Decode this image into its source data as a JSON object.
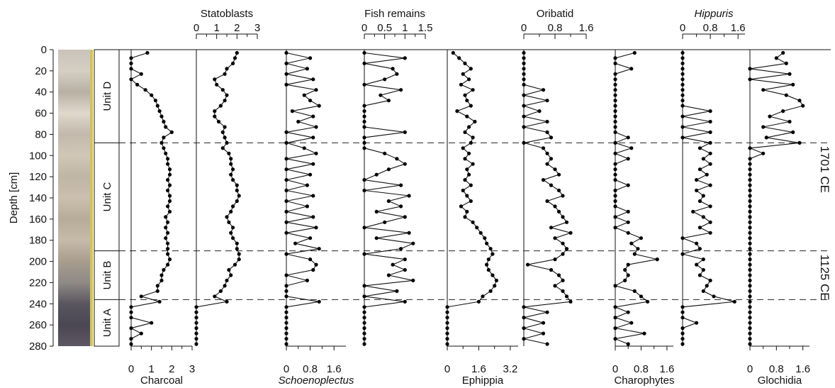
{
  "chart_data": {
    "type": "line",
    "orientation": "vertical-depth-stratigraphy",
    "ylabel": "Depth [cm]",
    "ylim": [
      0,
      280
    ],
    "yticks": [
      0,
      20,
      40,
      60,
      80,
      100,
      120,
      140,
      160,
      180,
      200,
      220,
      240,
      260,
      280
    ],
    "units": [
      {
        "label": "Unit D",
        "top": 0,
        "bottom": 88
      },
      {
        "label": "Unit C",
        "top": 88,
        "bottom": 190
      },
      {
        "label": "Unit B",
        "top": 190,
        "bottom": 236
      },
      {
        "label": "Unit A",
        "top": 236,
        "bottom": 280
      }
    ],
    "boundaries": [
      {
        "depth": 88,
        "label": "1701 CE"
      },
      {
        "depth": 190,
        "label": "1125 CE"
      },
      {
        "depth": 236,
        "label": ""
      }
    ],
    "series": [
      {
        "name": "Charcoal",
        "italic": false,
        "axis": "bottom",
        "xlim": [
          0,
          3
        ],
        "xticks": [
          "0",
          "1",
          "2",
          "3"
        ],
        "depths": [
          3,
          8,
          13,
          18,
          23,
          28,
          33,
          38,
          43,
          48,
          53,
          58,
          63,
          68,
          73,
          78,
          83,
          88,
          93,
          98,
          103,
          108,
          113,
          118,
          123,
          128,
          133,
          138,
          143,
          148,
          153,
          158,
          163,
          168,
          173,
          178,
          183,
          188,
          193,
          198,
          203,
          208,
          213,
          218,
          223,
          228,
          233,
          238,
          243,
          248,
          253,
          258,
          263,
          268,
          273,
          278
        ],
        "values": [
          0.8,
          0,
          0,
          0,
          0.5,
          0,
          0.3,
          0.7,
          1.0,
          1.2,
          1.3,
          1.4,
          1.5,
          1.6,
          1.7,
          2.0,
          1.6,
          1.5,
          1.6,
          1.7,
          1.8,
          1.8,
          1.9,
          1.9,
          1.8,
          1.9,
          1.8,
          1.9,
          1.9,
          1.8,
          1.9,
          1.7,
          1.8,
          1.7,
          1.8,
          1.7,
          1.8,
          1.8,
          1.8,
          1.9,
          1.8,
          1.6,
          1.5,
          1.5,
          1.3,
          1.3,
          0.5,
          1.4,
          0,
          0,
          0,
          1.0,
          0,
          0.5,
          0,
          0
        ]
      },
      {
        "name": "Statoblasts",
        "italic": false,
        "axis": "top",
        "xlim": [
          0,
          3
        ],
        "xticks": [
          "0",
          "1",
          "2",
          "3"
        ],
        "depths": [
          3,
          8,
          13,
          18,
          23,
          28,
          33,
          38,
          43,
          48,
          53,
          58,
          63,
          68,
          73,
          78,
          83,
          88,
          93,
          98,
          103,
          108,
          113,
          118,
          123,
          128,
          133,
          138,
          143,
          148,
          153,
          158,
          163,
          168,
          173,
          178,
          183,
          188,
          193,
          198,
          203,
          208,
          213,
          218,
          223,
          228,
          233,
          238,
          243,
          248,
          253,
          258,
          263,
          268,
          273,
          278
        ],
        "values": [
          2.0,
          1.9,
          1.8,
          1.5,
          1.4,
          0.9,
          1.0,
          1.3,
          1.5,
          1.4,
          1.2,
          0.9,
          0.9,
          1.1,
          1.4,
          1.3,
          1.4,
          1.5,
          1.3,
          1.6,
          1.7,
          1.7,
          1.8,
          1.7,
          1.8,
          2.0,
          2.0,
          2.1,
          2.0,
          1.8,
          1.7,
          1.5,
          1.6,
          1.8,
          1.7,
          1.8,
          2.0,
          2.0,
          2.1,
          2.1,
          1.9,
          1.6,
          1.7,
          1.5,
          1.4,
          1.2,
          0.9,
          1.5,
          0,
          0,
          0,
          0,
          0,
          0,
          0,
          0
        ]
      },
      {
        "name": "Schoenoplectus",
        "italic": true,
        "axis": "bottom",
        "xlim": [
          0,
          2
        ],
        "xticks": [
          "0",
          "0.8",
          "1.6"
        ],
        "depths": [
          3,
          8,
          13,
          18,
          23,
          28,
          33,
          38,
          43,
          48,
          53,
          58,
          63,
          68,
          73,
          78,
          83,
          88,
          93,
          98,
          103,
          108,
          113,
          118,
          123,
          128,
          133,
          138,
          143,
          148,
          153,
          158,
          163,
          168,
          173,
          178,
          183,
          188,
          193,
          198,
          203,
          208,
          213,
          218,
          223,
          228,
          233,
          238,
          243,
          248,
          253,
          258,
          263,
          268,
          273,
          278
        ],
        "values": [
          0,
          0.8,
          0,
          0.7,
          0,
          0.9,
          0,
          1.0,
          0.6,
          0.8,
          1.1,
          0.2,
          0.9,
          0.4,
          1.0,
          0,
          0.9,
          0,
          0.6,
          1.0,
          0,
          0.9,
          0,
          0.8,
          0,
          0.7,
          0,
          0.9,
          0,
          0.7,
          0,
          0.9,
          0,
          1.0,
          0,
          0.8,
          0.3,
          1.1,
          0,
          0.8,
          1.0,
          0.9,
          0,
          0.7,
          0,
          0,
          0,
          1.1,
          0,
          0,
          0,
          0,
          0,
          0,
          0,
          0
        ]
      },
      {
        "name": "Fish remains",
        "italic": false,
        "axis": "top",
        "xlim": [
          0,
          1.5
        ],
        "xticks": [
          "0",
          "0.5",
          "1",
          "1.5"
        ],
        "depths": [
          3,
          8,
          13,
          18,
          23,
          28,
          33,
          38,
          43,
          48,
          53,
          58,
          63,
          68,
          73,
          78,
          83,
          88,
          93,
          98,
          103,
          108,
          113,
          118,
          123,
          128,
          133,
          138,
          143,
          148,
          153,
          158,
          163,
          168,
          173,
          178,
          183,
          188,
          193,
          198,
          203,
          208,
          213,
          218,
          223,
          228,
          233,
          238,
          243,
          248,
          253,
          258,
          263,
          268,
          273,
          278
        ],
        "values": [
          0,
          1.0,
          0,
          0.7,
          0.8,
          0.5,
          0,
          0.9,
          0.4,
          0.6,
          0,
          0,
          0,
          0,
          0,
          1.0,
          0,
          0,
          0,
          0.5,
          0.8,
          1.0,
          0.6,
          0.3,
          0,
          0.9,
          0,
          1.1,
          0.6,
          0.9,
          0.3,
          1.0,
          0.5,
          0,
          1.1,
          0.3,
          1.2,
          0.9,
          0,
          1.0,
          0.7,
          1.0,
          0.6,
          1.2,
          0,
          0.8,
          0,
          1.0,
          0,
          0,
          0,
          0,
          0,
          0,
          0,
          0
        ]
      },
      {
        "name": "Ephippia",
        "italic": false,
        "axis": "bottom",
        "xlim": [
          0,
          3.6
        ],
        "xticks": [
          "0",
          "1.6",
          "3.2"
        ],
        "depths": [
          3,
          8,
          13,
          18,
          23,
          28,
          33,
          38,
          43,
          48,
          53,
          58,
          63,
          68,
          73,
          78,
          83,
          88,
          93,
          98,
          103,
          108,
          113,
          118,
          123,
          128,
          133,
          138,
          143,
          148,
          153,
          158,
          163,
          168,
          173,
          178,
          183,
          188,
          193,
          198,
          203,
          208,
          213,
          218,
          223,
          228,
          233,
          238,
          243,
          248,
          253,
          258,
          263,
          268,
          273,
          278
        ],
        "values": [
          0.3,
          0.6,
          0.9,
          1.2,
          0.8,
          1.1,
          0.7,
          1.3,
          0.9,
          1.0,
          1.2,
          0.5,
          1.0,
          1.4,
          1.1,
          0.9,
          1.3,
          1.2,
          0.8,
          1.1,
          0.9,
          1.3,
          1.0,
          1.1,
          0.9,
          1.2,
          0.8,
          1.0,
          1.2,
          0.7,
          1.0,
          0.9,
          1.3,
          1.5,
          1.7,
          1.9,
          2.0,
          2.2,
          2.3,
          2.1,
          2.0,
          2.1,
          2.3,
          2.5,
          2.4,
          2.2,
          1.8,
          1.6,
          0,
          0,
          0,
          0,
          0,
          0,
          0,
          0
        ]
      },
      {
        "name": "Oribatid",
        "italic": false,
        "axis": "top",
        "xlim": [
          0,
          1.6
        ],
        "xticks": [
          "0",
          "0.8",
          "1.6"
        ],
        "depths": [
          3,
          8,
          13,
          18,
          23,
          28,
          33,
          38,
          43,
          48,
          53,
          58,
          63,
          68,
          73,
          78,
          83,
          88,
          93,
          98,
          103,
          108,
          113,
          118,
          123,
          128,
          133,
          138,
          143,
          148,
          153,
          158,
          163,
          168,
          173,
          178,
          183,
          188,
          193,
          198,
          203,
          208,
          213,
          218,
          223,
          228,
          233,
          238,
          243,
          248,
          253,
          258,
          263,
          268,
          273,
          278
        ],
        "values": [
          0,
          0,
          0,
          0,
          0,
          0,
          0,
          0.5,
          0,
          0.6,
          0,
          0.4,
          0,
          0.6,
          0,
          0.6,
          0.7,
          0,
          0.5,
          0.6,
          0.7,
          0.6,
          0.8,
          0.9,
          0.5,
          0.7,
          0.9,
          1.0,
          0.6,
          0.8,
          0.9,
          1.0,
          1.1,
          0.7,
          1.2,
          0.8,
          1.0,
          1.1,
          1.0,
          0.8,
          0.1,
          0.7,
          0.9,
          1.0,
          0.8,
          1.0,
          1.1,
          1.2,
          0,
          0.6,
          0,
          0.5,
          0,
          0.5,
          0,
          0.6
        ]
      },
      {
        "name": "Charophytes",
        "italic": false,
        "axis": "bottom",
        "xlim": [
          0,
          1.8
        ],
        "xticks": [
          "0",
          "0.8",
          "1.6"
        ],
        "depths": [
          3,
          8,
          13,
          18,
          23,
          28,
          33,
          38,
          43,
          48,
          53,
          58,
          63,
          68,
          73,
          78,
          83,
          88,
          93,
          98,
          103,
          108,
          113,
          118,
          123,
          128,
          133,
          138,
          143,
          148,
          153,
          158,
          163,
          168,
          173,
          178,
          183,
          188,
          193,
          198,
          203,
          208,
          213,
          218,
          223,
          228,
          233,
          238,
          243,
          248,
          253,
          258,
          263,
          268,
          273,
          278
        ],
        "values": [
          0.6,
          0,
          0,
          0.5,
          0,
          0,
          0,
          0,
          0,
          0,
          0,
          0,
          0,
          0,
          0,
          0,
          0.4,
          0,
          0.5,
          0,
          0.4,
          0,
          0,
          0,
          0,
          0.4,
          0,
          0,
          0,
          0,
          0.4,
          0,
          0.4,
          0,
          0.4,
          0.8,
          0.5,
          0.7,
          0.6,
          1.3,
          0.4,
          0.3,
          0.4,
          0.3,
          0,
          0.6,
          0.8,
          1.0,
          0,
          0.4,
          0,
          0.5,
          0,
          0.9,
          0,
          0.4
        ]
      },
      {
        "name": "Hippuris",
        "italic": true,
        "axis": "top",
        "xlim": [
          0,
          1.8
        ],
        "xticks": [
          "0",
          "0.8",
          "1.6"
        ],
        "depths": [
          3,
          8,
          13,
          18,
          23,
          28,
          33,
          38,
          43,
          48,
          53,
          58,
          63,
          68,
          73,
          78,
          83,
          88,
          93,
          98,
          103,
          108,
          113,
          118,
          123,
          128,
          133,
          138,
          143,
          148,
          153,
          158,
          163,
          168,
          173,
          178,
          183,
          188,
          193,
          198,
          203,
          208,
          213,
          218,
          223,
          228,
          233,
          238,
          243,
          248,
          253,
          258,
          263,
          268,
          273,
          278
        ],
        "values": [
          0,
          0,
          0,
          0,
          0,
          0,
          0,
          0,
          0,
          0,
          0,
          0.8,
          0,
          0.8,
          0,
          0.8,
          0,
          0.8,
          0.5,
          0.8,
          0.6,
          0.8,
          0.5,
          0.7,
          0.4,
          0.8,
          0.4,
          0.6,
          0.5,
          0.8,
          0.3,
          0.6,
          0.8,
          0.5,
          0.8,
          0,
          0.4,
          0.5,
          0,
          0.6,
          0.4,
          0.6,
          0.5,
          0.8,
          0.7,
          0.6,
          0.9,
          1.5,
          0,
          0,
          0,
          0.4,
          0,
          0,
          0,
          0
        ]
      },
      {
        "name": "Glochidia",
        "italic": false,
        "axis": "bottom",
        "xlim": [
          0,
          1.8
        ],
        "xticks": [
          "0",
          "0.8",
          "1.6"
        ],
        "depths": [
          3,
          8,
          13,
          18,
          23,
          28,
          33,
          38,
          43,
          48,
          53,
          58,
          63,
          68,
          73,
          78,
          83,
          88,
          93,
          98,
          103,
          108,
          113,
          118,
          123,
          128,
          133,
          138,
          143,
          148,
          153,
          158,
          163,
          168,
          173,
          178,
          183,
          188,
          193,
          198,
          203,
          208,
          213,
          218,
          223,
          228,
          233,
          238,
          243,
          248,
          253,
          258,
          263,
          268,
          273,
          278
        ],
        "values": [
          1.0,
          0.8,
          1.1,
          0,
          1.2,
          0,
          1.3,
          0.4,
          1.1,
          1.5,
          1.6,
          1.0,
          0.6,
          1.2,
          0.4,
          1.3,
          0.5,
          1.5,
          0,
          0.4,
          0,
          0,
          0,
          0,
          0,
          0,
          0,
          0,
          0,
          0,
          0,
          0,
          0,
          0,
          0,
          0,
          0,
          0,
          0,
          0,
          0,
          0,
          0,
          0,
          0,
          0,
          0,
          0,
          0,
          0,
          0,
          0,
          0,
          0,
          0,
          0
        ]
      }
    ]
  },
  "core_image": {
    "colors": [
      "#c9c2b8",
      "#d6cfc4",
      "#b8b0a3",
      "#e0d8cc",
      "#c2b9ac",
      "#d1c7b7",
      "#bfb5a6",
      "#cbbfae",
      "#b7ab99",
      "#c6bba9",
      "#a89d8e",
      "#8e8a86",
      "#5a5660",
      "#4a4652",
      "#5c5763"
    ],
    "edge_color": "#d4c060"
  }
}
